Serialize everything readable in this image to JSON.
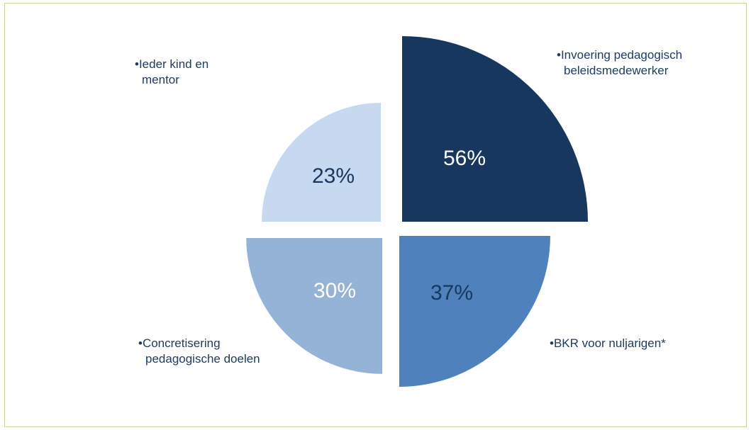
{
  "chart_data": {
    "type": "pie",
    "title": "",
    "slices": [
      {
        "label_lines": [
          "•Invoering pedagogisch",
          "beleidsmedewerker"
        ],
        "value": 56,
        "display": "56%",
        "color": "#17375e",
        "text_color": "#ffffff"
      },
      {
        "label_lines": [
          "•BKR voor nuljarigen*"
        ],
        "value": 37,
        "display": "37%",
        "color": "#4f81bd",
        "text_color": "#17375e"
      },
      {
        "label_lines": [
          "•Concretisering",
          "pedagogische doelen"
        ],
        "value": 30,
        "display": "30%",
        "color": "#95b3d7",
        "text_color": "#ffffff"
      },
      {
        "label_lines": [
          "•Ieder kind en",
          "mentor"
        ],
        "value": 23,
        "display": "23%",
        "color": "#c6d9f1",
        "text_color": "#17375e"
      }
    ],
    "frame_color": "#c4d79b"
  }
}
